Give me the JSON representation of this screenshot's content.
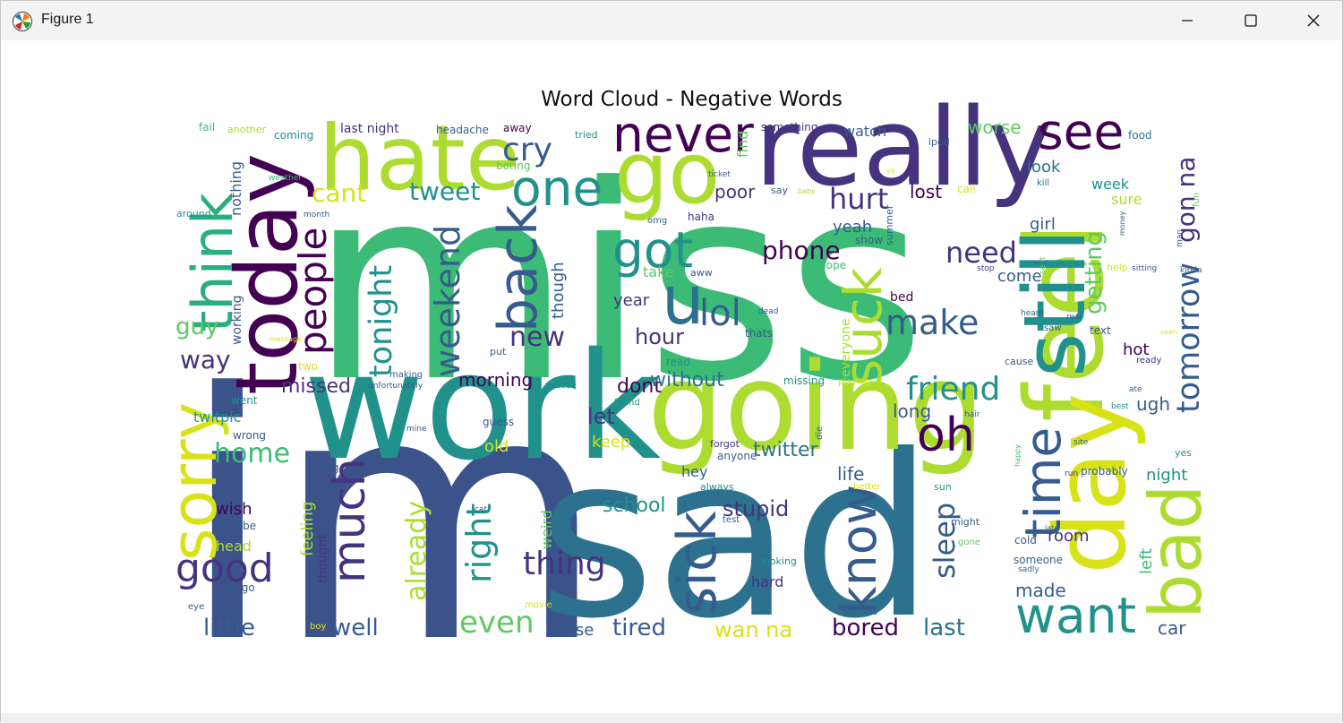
{
  "window": {
    "title": "Figure 1"
  },
  "figure": {
    "title": "Word Cloud - Negative Words"
  },
  "palette": {
    "purple": "#440154",
    "indigo": "#46337e",
    "blue": "#3b528b",
    "slate": "#365c8d",
    "teal": "#2c728e",
    "sea": "#21918c",
    "green": "#28ae80",
    "mint": "#3bbb75",
    "lime": "#5ec962",
    "yellowgreen": "#addc30",
    "yellow": "#d8e219",
    "gold": "#fde725"
  },
  "words": [
    {
      "t": "im",
      "c": "blue"
    },
    {
      "t": "miss",
      "c": "mint"
    },
    {
      "t": "sad",
      "c": "teal"
    },
    {
      "t": "work",
      "c": "sea"
    },
    {
      "t": "going",
      "c": "yellowgreen"
    },
    {
      "t": "really",
      "c": "indigo"
    },
    {
      "t": "feel",
      "c": "yellowgreen"
    },
    {
      "t": "day",
      "c": "yellow"
    },
    {
      "t": "today",
      "c": "purple"
    },
    {
      "t": "hate",
      "c": "yellowgreen"
    },
    {
      "t": "go",
      "c": "yellowgreen"
    },
    {
      "t": "still",
      "c": "sea"
    },
    {
      "t": "bad",
      "c": "yellowgreen"
    },
    {
      "t": "think",
      "c": "green"
    },
    {
      "t": "back",
      "c": "slate"
    },
    {
      "t": "suck",
      "c": "yellowgreen"
    },
    {
      "t": "u",
      "c": "teal"
    },
    {
      "t": "one",
      "c": "sea"
    },
    {
      "t": "never",
      "c": "purple"
    },
    {
      "t": "see",
      "c": "purple"
    },
    {
      "t": "sorry",
      "c": "yellow"
    },
    {
      "t": "oh",
      "c": "purple"
    },
    {
      "t": "got",
      "c": "sea"
    },
    {
      "t": "want",
      "c": "sea"
    },
    {
      "t": "sick",
      "c": "slate"
    },
    {
      "t": "know",
      "c": "slate"
    },
    {
      "t": "much",
      "c": "indigo"
    },
    {
      "t": "time",
      "c": "slate"
    },
    {
      "t": "people",
      "c": "purple"
    },
    {
      "t": "good",
      "c": "indigo"
    },
    {
      "t": "lol",
      "c": "slate"
    },
    {
      "t": "make",
      "c": "slate"
    },
    {
      "t": "friend",
      "c": "sea"
    },
    {
      "t": "tomorrow",
      "c": "slate"
    },
    {
      "t": "weekend",
      "c": "slate"
    },
    {
      "t": "tonight",
      "c": "sea"
    },
    {
      "t": "right",
      "c": "sea"
    },
    {
      "t": "thing",
      "c": "indigo"
    },
    {
      "t": "cry",
      "c": "slate"
    },
    {
      "t": "hurt",
      "c": "indigo"
    },
    {
      "t": "new",
      "c": "indigo"
    },
    {
      "t": "need",
      "c": "indigo"
    },
    {
      "t": "even",
      "c": "lime"
    },
    {
      "t": "sleep",
      "c": "slate"
    },
    {
      "t": "already",
      "c": "yellowgreen"
    },
    {
      "t": "cant",
      "c": "yellow"
    },
    {
      "t": "tweet",
      "c": "sea"
    },
    {
      "t": "gon na",
      "c": "indigo"
    },
    {
      "t": "phone",
      "c": "purple"
    },
    {
      "t": "home",
      "c": "mint"
    },
    {
      "t": "way",
      "c": "indigo"
    },
    {
      "t": "guy",
      "c": "lime"
    },
    {
      "t": "hour",
      "c": "indigo"
    },
    {
      "t": "let",
      "c": "indigo"
    },
    {
      "t": "getting",
      "c": "lime"
    },
    {
      "t": "stupid",
      "c": "indigo"
    },
    {
      "t": "little",
      "c": "slate"
    },
    {
      "t": "well",
      "c": "slate"
    },
    {
      "t": "tired",
      "c": "slate"
    },
    {
      "t": "bored",
      "c": "purple"
    },
    {
      "t": "last",
      "c": "teal"
    },
    {
      "t": "wan na",
      "c": "yellow"
    },
    {
      "t": "twitter",
      "c": "teal"
    },
    {
      "t": "missed",
      "c": "indigo"
    },
    {
      "t": "dont",
      "c": "purple"
    },
    {
      "t": "without",
      "c": "teal"
    },
    {
      "t": "morning",
      "c": "purple"
    },
    {
      "t": "keep",
      "c": "yellow"
    },
    {
      "t": "school",
      "c": "sea"
    },
    {
      "t": "worse",
      "c": "lime"
    },
    {
      "t": "watch",
      "c": "slate"
    },
    {
      "t": "look",
      "c": "teal"
    },
    {
      "t": "week",
      "c": "sea"
    },
    {
      "t": "lost",
      "c": "purple"
    },
    {
      "t": "poor",
      "c": "indigo"
    },
    {
      "t": "yeah",
      "c": "slate"
    },
    {
      "t": "ugh",
      "c": "slate"
    },
    {
      "t": "hot",
      "c": "purple"
    },
    {
      "t": "long",
      "c": "slate"
    },
    {
      "t": "life",
      "c": "slate"
    },
    {
      "t": "old",
      "c": "yellow"
    },
    {
      "t": "left",
      "c": "mint"
    },
    {
      "t": "made",
      "c": "slate"
    },
    {
      "t": "room",
      "c": "indigo"
    },
    {
      "t": "car",
      "c": "slate"
    },
    {
      "t": "night",
      "c": "sea"
    },
    {
      "t": "girl",
      "c": "slate"
    },
    {
      "t": "come",
      "c": "slate"
    },
    {
      "t": "year",
      "c": "indigo"
    },
    {
      "t": "take",
      "c": "lime"
    },
    {
      "t": "though",
      "c": "slate"
    },
    {
      "t": "find",
      "c": "lime"
    },
    {
      "t": "sure",
      "c": "yellowgreen"
    },
    {
      "t": "wish",
      "c": "purple"
    },
    {
      "t": "feeling",
      "c": "yellowgreen"
    },
    {
      "t": "nothing",
      "c": "slate"
    },
    {
      "t": "twitpic",
      "c": "sea"
    },
    {
      "t": "head",
      "c": "yellowgreen"
    },
    {
      "t": "hard",
      "c": "indigo"
    },
    {
      "t": "house",
      "c": "slate"
    },
    {
      "t": "weird",
      "c": "lime"
    },
    {
      "t": "hey",
      "c": "slate"
    },
    {
      "t": "bed",
      "c": "purple"
    },
    {
      "t": "everyone",
      "c": "yellowgreen"
    },
    {
      "t": "thought",
      "c": "indigo"
    },
    {
      "t": "working",
      "c": "slate"
    },
    {
      "t": "last night",
      "c": "indigo"
    },
    {
      "t": "headache",
      "c": "slate"
    },
    {
      "t": "fail",
      "c": "mint"
    },
    {
      "t": "another",
      "c": "yellowgreen"
    },
    {
      "t": "coming",
      "c": "sea"
    },
    {
      "t": "away",
      "c": "purple"
    },
    {
      "t": "tried",
      "c": "sea"
    },
    {
      "t": "something",
      "c": "indigo"
    },
    {
      "t": "ipod",
      "c": "slate"
    },
    {
      "t": "food",
      "c": "teal"
    },
    {
      "t": "boring",
      "c": "lime"
    },
    {
      "t": "ticket",
      "c": "slate"
    },
    {
      "t": "say",
      "c": "slate"
    },
    {
      "t": "baby",
      "c": "yellowgreen"
    },
    {
      "t": "ya",
      "c": "yellow"
    },
    {
      "t": "call",
      "c": "yellow"
    },
    {
      "t": "kill",
      "c": "teal"
    },
    {
      "t": "fun",
      "c": "lime"
    },
    {
      "t": "weather",
      "c": "mint"
    },
    {
      "t": "around",
      "c": "sea"
    },
    {
      "t": "month",
      "c": "slate"
    },
    {
      "t": "omg",
      "c": "slate"
    },
    {
      "t": "haha",
      "c": "indigo"
    },
    {
      "t": "show",
      "c": "slate"
    },
    {
      "t": "summer",
      "c": "slate"
    },
    {
      "t": "money",
      "c": "slate"
    },
    {
      "t": "man",
      "c": "slate"
    },
    {
      "t": "kinda",
      "c": "slate"
    },
    {
      "t": "hope",
      "c": "mint"
    },
    {
      "t": "aww",
      "c": "slate"
    },
    {
      "t": "stop",
      "c": "indigo"
    },
    {
      "t": "sent",
      "c": "lime"
    },
    {
      "t": "help",
      "c": "yellow"
    },
    {
      "t": "sitting",
      "c": "slate"
    },
    {
      "t": "dead",
      "c": "slate"
    },
    {
      "t": "thats",
      "c": "slate"
    },
    {
      "t": "heard",
      "c": "slate"
    },
    {
      "t": "real",
      "c": "slate"
    },
    {
      "t": "saw",
      "c": "slate"
    },
    {
      "t": "text",
      "c": "slate"
    },
    {
      "t": "seen",
      "c": "yellow"
    },
    {
      "t": "ready",
      "c": "indigo"
    },
    {
      "t": "cause",
      "c": "slate"
    },
    {
      "t": "read",
      "c": "sea"
    },
    {
      "t": "put",
      "c": "slate"
    },
    {
      "t": "two",
      "c": "yellow"
    },
    {
      "t": "message",
      "c": "yellow"
    },
    {
      "t": "making",
      "c": "slate"
    },
    {
      "t": "unfortunately",
      "c": "slate"
    },
    {
      "t": "please",
      "c": "sea"
    },
    {
      "t": "missing",
      "c": "sea"
    },
    {
      "t": "playing",
      "c": "yellow"
    },
    {
      "t": "ate",
      "c": "slate"
    },
    {
      "t": "went",
      "c": "sea"
    },
    {
      "t": "found",
      "c": "sea"
    },
    {
      "t": "best",
      "c": "sea"
    },
    {
      "t": "hair",
      "c": "slate"
    },
    {
      "t": "wrong",
      "c": "slate"
    },
    {
      "t": "mine",
      "c": "slate"
    },
    {
      "t": "guess",
      "c": "slate"
    },
    {
      "t": "die",
      "c": "slate"
    },
    {
      "t": "forgot",
      "c": "indigo"
    },
    {
      "t": "anyone",
      "c": "slate"
    },
    {
      "t": "site",
      "c": "slate"
    },
    {
      "t": "yes",
      "c": "sea"
    },
    {
      "t": "big",
      "c": "slate"
    },
    {
      "t": "jealous",
      "c": "slate"
    },
    {
      "t": "happy",
      "c": "mint"
    },
    {
      "t": "run",
      "c": "indigo"
    },
    {
      "t": "probably",
      "c": "slate"
    },
    {
      "t": "always",
      "c": "sea"
    },
    {
      "t": "better",
      "c": "yellow"
    },
    {
      "t": "sun",
      "c": "sea"
    },
    {
      "t": "maybe",
      "c": "slate"
    },
    {
      "t": "cat",
      "c": "slate"
    },
    {
      "t": "test",
      "c": "slate"
    },
    {
      "t": "might",
      "c": "slate"
    },
    {
      "t": "late",
      "c": "slate"
    },
    {
      "t": "cold",
      "c": "slate"
    },
    {
      "t": "gone",
      "c": "lime"
    },
    {
      "t": "looking",
      "c": "sea"
    },
    {
      "t": "someone",
      "c": "slate"
    },
    {
      "t": "sadly",
      "c": "slate"
    },
    {
      "t": "lame",
      "c": "yellow"
    },
    {
      "t": "na go",
      "c": "slate"
    },
    {
      "t": "eye",
      "c": "slate"
    },
    {
      "t": "movie",
      "c": "yellow"
    },
    {
      "t": "watched",
      "c": "slate"
    },
    {
      "t": "boy",
      "c": "yellow"
    },
    {
      "t": "wow",
      "c": "slate"
    }
  ]
}
